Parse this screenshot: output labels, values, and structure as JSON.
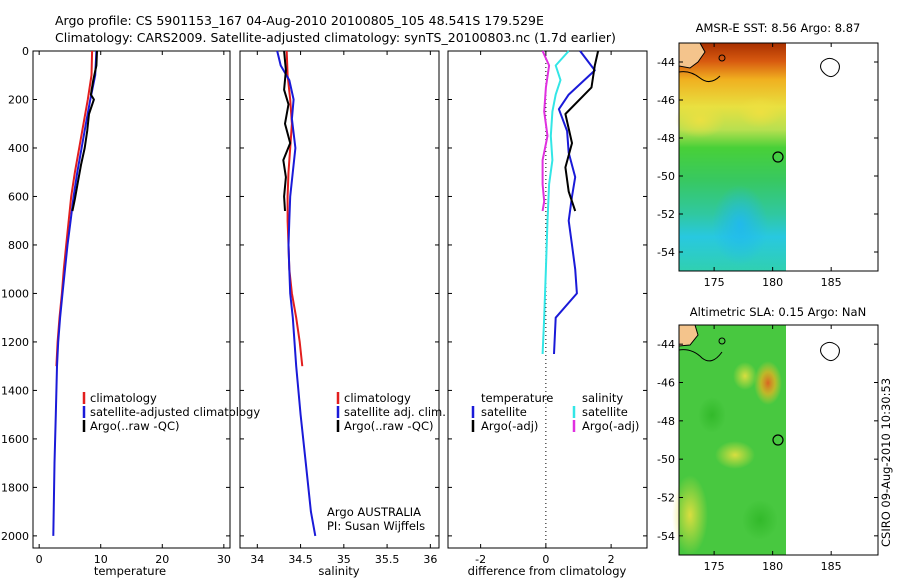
{
  "header": {
    "line1": "Argo profile: CS 5901153_167 04-Aug-2010 20100805_105 48.541S 179.529E",
    "line2": "Climatology: CARS2009. Satellite-adjusted climatology: synTS_20100803.nc (1.7d earlier)"
  },
  "side_label": "CSIRO 09-Aug-2010 10:30:53",
  "colors": {
    "red": "#e21e1e",
    "blue": "#1a1ad8",
    "black": "#000000",
    "cyan": "#33e6e6",
    "magenta": "#e030e0"
  },
  "chart_data": [
    {
      "type": "line",
      "xlabel": "temperature",
      "xlim": [
        -1,
        31
      ],
      "ylim": [
        2050,
        0
      ],
      "xticks": [
        "0",
        "10",
        "20",
        "30"
      ],
      "yticks": [
        "0",
        "200",
        "400",
        "600",
        "800",
        "1000",
        "1200",
        "1400",
        "1600",
        "1800",
        "2000"
      ],
      "legend": [
        "climatology",
        "satellite-adjusted climatology",
        "Argo(..raw -QC)"
      ],
      "series": [
        {
          "name": "climatology",
          "color": "#e21e1e",
          "points": [
            [
              8.6,
              0
            ],
            [
              8.5,
              100
            ],
            [
              7.9,
              200
            ],
            [
              7.2,
              300
            ],
            [
              6.5,
              400
            ],
            [
              5.8,
              500
            ],
            [
              5.2,
              600
            ],
            [
              4.8,
              700
            ],
            [
              4.4,
              800
            ],
            [
              4.0,
              900
            ],
            [
              3.7,
              1000
            ],
            [
              3.3,
              1100
            ],
            [
              3.0,
              1200
            ],
            [
              2.8,
              1300
            ]
          ]
        },
        {
          "name": "satellite-adjusted climatology",
          "color": "#1a1ad8",
          "points": [
            [
              9.3,
              0
            ],
            [
              9.1,
              100
            ],
            [
              8.3,
              200
            ],
            [
              7.6,
              300
            ],
            [
              6.9,
              400
            ],
            [
              6.2,
              500
            ],
            [
              5.6,
              600
            ],
            [
              5.1,
              700
            ],
            [
              4.6,
              800
            ],
            [
              4.2,
              900
            ],
            [
              3.8,
              1000
            ],
            [
              3.4,
              1100
            ],
            [
              3.1,
              1200
            ],
            [
              2.9,
              1300
            ],
            [
              2.7,
              1500
            ],
            [
              2.5,
              1700
            ],
            [
              2.3,
              2000
            ]
          ]
        },
        {
          "name": "Argo(..raw -QC)",
          "color": "#000000",
          "points": [
            [
              9.4,
              0
            ],
            [
              9.3,
              60
            ],
            [
              8.8,
              120
            ],
            [
              8.4,
              180
            ],
            [
              8.9,
              200
            ],
            [
              8.1,
              260
            ],
            [
              7.8,
              330
            ],
            [
              7.4,
              400
            ],
            [
              6.8,
              470
            ],
            [
              6.3,
              540
            ],
            [
              5.8,
              610
            ],
            [
              5.4,
              660
            ]
          ]
        }
      ]
    },
    {
      "type": "line",
      "xlabel": "salinity",
      "xlim": [
        33.8,
        36.1
      ],
      "ylim": [
        2050,
        0
      ],
      "xticks": [
        "34",
        "34.5",
        "35",
        "35.5",
        "36"
      ],
      "yticks": [],
      "legend": [
        "climatology",
        "satellite adj. clim.",
        "Argo(..raw -QC)"
      ],
      "annotation": [
        "Argo AUSTRALIA",
        "PI: Susan Wijffels"
      ],
      "series": [
        {
          "name": "climatology",
          "color": "#e21e1e",
          "points": [
            [
              34.34,
              0
            ],
            [
              34.35,
              100
            ],
            [
              34.38,
              200
            ],
            [
              34.4,
              300
            ],
            [
              34.38,
              400
            ],
            [
              34.36,
              500
            ],
            [
              34.35,
              600
            ],
            [
              34.35,
              700
            ],
            [
              34.36,
              800
            ],
            [
              34.37,
              900
            ],
            [
              34.4,
              1000
            ],
            [
              34.45,
              1100
            ],
            [
              34.49,
              1200
            ],
            [
              34.52,
              1300
            ]
          ]
        },
        {
          "name": "satellite adj. clim.",
          "color": "#1a1ad8",
          "points": [
            [
              34.23,
              0
            ],
            [
              34.27,
              60
            ],
            [
              34.37,
              120
            ],
            [
              34.42,
              200
            ],
            [
              34.4,
              280
            ],
            [
              34.44,
              400
            ],
            [
              34.41,
              500
            ],
            [
              34.38,
              600
            ],
            [
              34.37,
              700
            ],
            [
              34.36,
              800
            ],
            [
              34.37,
              900
            ],
            [
              34.38,
              1000
            ],
            [
              34.41,
              1100
            ],
            [
              34.43,
              1200
            ],
            [
              34.45,
              1300
            ],
            [
              34.5,
              1500
            ],
            [
              34.56,
              1700
            ],
            [
              34.62,
              1900
            ],
            [
              34.67,
              2000
            ]
          ]
        },
        {
          "name": "Argo(..raw -QC)",
          "color": "#000000",
          "points": [
            [
              34.31,
              0
            ],
            [
              34.33,
              80
            ],
            [
              34.31,
              160
            ],
            [
              34.36,
              220
            ],
            [
              34.32,
              300
            ],
            [
              34.38,
              380
            ],
            [
              34.3,
              450
            ],
            [
              34.33,
              520
            ],
            [
              34.31,
              600
            ],
            [
              34.32,
              660
            ]
          ]
        }
      ]
    },
    {
      "type": "line",
      "xlabel": "difference from climatology",
      "xlim": [
        -3,
        3.1
      ],
      "ylim": [
        2050,
        0
      ],
      "xticks": [
        "-2",
        "0",
        "2"
      ],
      "yticks": [],
      "legend_temperature": {
        "header": "temperature",
        "items": [
          "satellite",
          "Argo(-adj)"
        ]
      },
      "legend_salinity": {
        "header": "salinity",
        "items": [
          "satellite",
          "Argo(-adj)"
        ]
      },
      "series": [
        {
          "name": "temperature satellite",
          "color": "#1a1ad8",
          "points": [
            [
              1.05,
              0
            ],
            [
              1.5,
              80
            ],
            [
              0.7,
              180
            ],
            [
              0.4,
              240
            ],
            [
              0.65,
              330
            ],
            [
              0.7,
              420
            ],
            [
              0.9,
              520
            ],
            [
              0.8,
              600
            ],
            [
              0.7,
              700
            ],
            [
              0.8,
              800
            ],
            [
              0.9,
              900
            ],
            [
              0.95,
              1000
            ],
            [
              0.3,
              1100
            ],
            [
              0.25,
              1250
            ]
          ]
        },
        {
          "name": "temperature Argo(-adj)",
          "color": "#000000",
          "points": [
            [
              1.6,
              0
            ],
            [
              1.5,
              60
            ],
            [
              1.4,
              150
            ],
            [
              0.6,
              260
            ],
            [
              0.8,
              380
            ],
            [
              0.6,
              480
            ],
            [
              0.7,
              580
            ],
            [
              0.9,
              660
            ]
          ]
        },
        {
          "name": "salinity satellite",
          "color": "#33e6e6",
          "points": [
            [
              0.7,
              0
            ],
            [
              0.3,
              60
            ],
            [
              0.45,
              120
            ],
            [
              0.3,
              180
            ],
            [
              0.2,
              250
            ],
            [
              0.15,
              350
            ],
            [
              0.2,
              450
            ],
            [
              0.1,
              550
            ],
            [
              0.05,
              700
            ],
            [
              0,
              900
            ],
            [
              -0.05,
              1100
            ],
            [
              -0.1,
              1250
            ]
          ]
        },
        {
          "name": "salinity Argo(-adj)",
          "color": "#e030e0",
          "points": [
            [
              -0.1,
              0
            ],
            [
              0.1,
              60
            ],
            [
              0.0,
              150
            ],
            [
              -0.05,
              250
            ],
            [
              0.05,
              350
            ],
            [
              -0.1,
              450
            ],
            [
              -0.1,
              550
            ],
            [
              -0.05,
              620
            ],
            [
              -0.1,
              660
            ]
          ]
        }
      ]
    },
    {
      "type": "heatmap",
      "title": "AMSR-E SST: 8.56 Argo: 8.87",
      "xticks": [
        "175",
        "180",
        "185"
      ],
      "yticks": [
        "-44",
        "-46",
        "-48",
        "-50",
        "-52",
        "-54"
      ],
      "xlim": [
        172,
        189
      ],
      "ylim": [
        -55,
        -43
      ]
    },
    {
      "type": "heatmap",
      "title": "Altimetric SLA: 0.15 Argo: NaN",
      "xticks": [
        "175",
        "180",
        "185"
      ],
      "yticks": [
        "-44",
        "-46",
        "-48",
        "-50",
        "-52",
        "-54"
      ],
      "xlim": [
        172,
        189
      ],
      "ylim": [
        -55,
        -43
      ]
    }
  ]
}
